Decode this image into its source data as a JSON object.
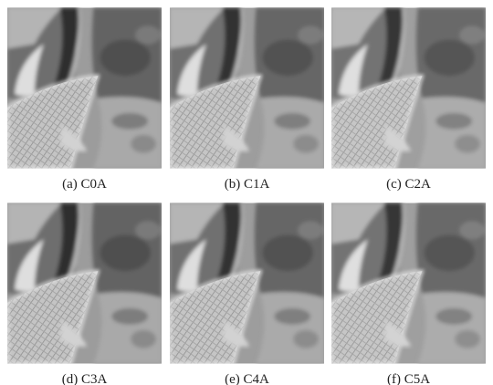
{
  "figure": {
    "panels": [
      {
        "caption": "(a) C0A"
      },
      {
        "caption": "(b) C1A"
      },
      {
        "caption": "(c) C2A"
      },
      {
        "caption": "(d) C3A"
      },
      {
        "caption": "(e) C4A"
      },
      {
        "caption": "(f) C5A"
      }
    ]
  }
}
